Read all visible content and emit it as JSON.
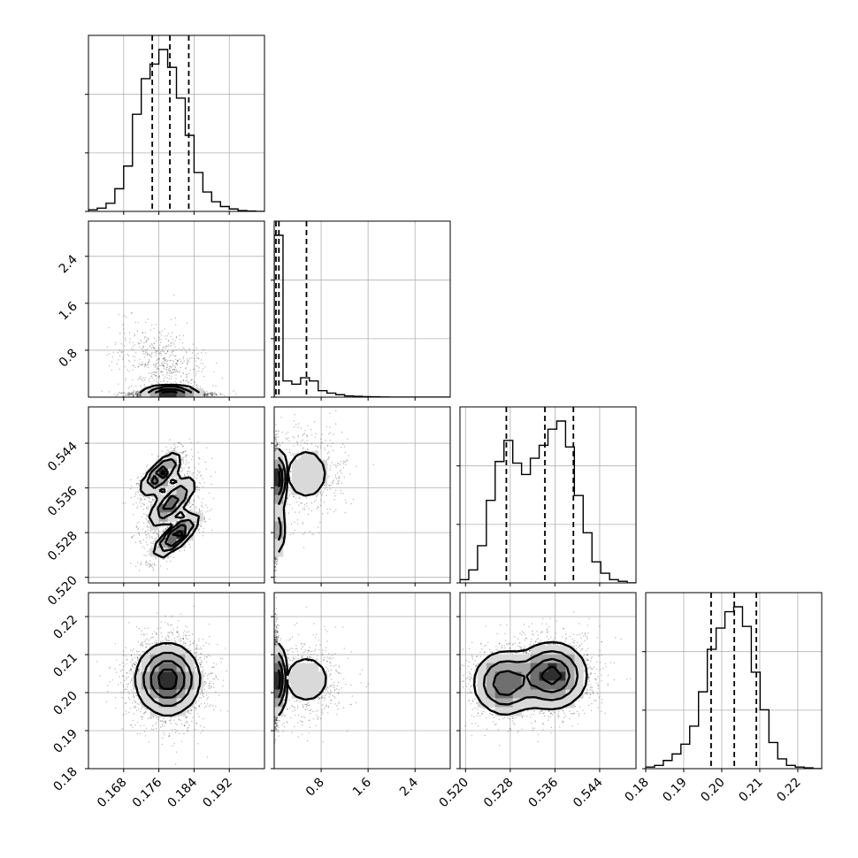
{
  "chart_data": {
    "type": "corner",
    "parameters": [
      {
        "name": "",
        "range": [
          0.16,
          0.2
        ],
        "ticks": [
          0.168,
          0.176,
          0.184,
          0.192
        ],
        "tick_labels": [
          "0.168",
          "0.176",
          "0.184",
          "0.192"
        ],
        "quantiles": [
          0.1745,
          0.1785,
          0.1828
        ]
      },
      {
        "name": "",
        "range": [
          0.0,
          3.0
        ],
        "ticks": [
          0.8,
          1.6,
          2.4
        ],
        "tick_labels": [
          "0.8",
          "1.6",
          "2.4"
        ],
        "quantiles": [
          0.03,
          0.08,
          0.55
        ]
      },
      {
        "name": "",
        "range": [
          0.519,
          0.5505
        ],
        "ticks": [
          0.52,
          0.528,
          0.536,
          0.544
        ],
        "tick_labels": [
          "0.520",
          "0.528",
          "0.536",
          "0.544"
        ],
        "quantiles": [
          0.5273,
          0.5342,
          0.5393
        ]
      },
      {
        "name": "",
        "range": [
          0.18,
          0.2263
        ],
        "ticks": [
          0.18,
          0.19,
          0.2,
          0.21,
          0.22
        ],
        "tick_labels": [
          "0.18",
          "0.19",
          "0.20",
          "0.21",
          "0.22"
        ],
        "quantiles": [
          0.1972,
          0.2033,
          0.2091
        ]
      }
    ],
    "histograms": [
      {
        "param": 0,
        "bin_edges_range": [
          0.16,
          0.2
        ],
        "counts": [
          1,
          2,
          5,
          14,
          28,
          60,
          82,
          91,
          100,
          89,
          70,
          47,
          24,
          12,
          6,
          3,
          1.5,
          0.5,
          0.2,
          0
        ]
      },
      {
        "param": 1,
        "bin_edges_range": [
          0.0,
          3.0
        ],
        "counts": [
          100,
          10,
          8,
          12,
          10,
          4,
          2.5,
          1.5,
          0.8,
          0.5,
          0.3,
          0.2,
          0.1,
          0.05,
          0,
          0,
          0,
          0,
          0,
          0
        ]
      },
      {
        "param": 2,
        "bin_edges_range": [
          0.519,
          0.5505
        ],
        "counts": [
          2,
          8,
          23,
          51,
          75,
          88,
          74,
          67,
          77,
          85,
          95,
          100,
          84,
          54,
          31,
          13,
          6,
          2,
          1,
          0
        ]
      },
      {
        "param": 3,
        "bin_edges_range": [
          0.18,
          0.2263
        ],
        "counts": [
          1,
          2,
          5,
          9,
          15,
          26,
          47,
          73,
          86,
          96,
          99,
          87,
          59,
          36,
          16,
          6,
          2,
          1,
          0.5,
          0
        ]
      }
    ],
    "scatter_points": "dense sample cloud (greyscale density)",
    "grid": true,
    "legend": "none"
  }
}
